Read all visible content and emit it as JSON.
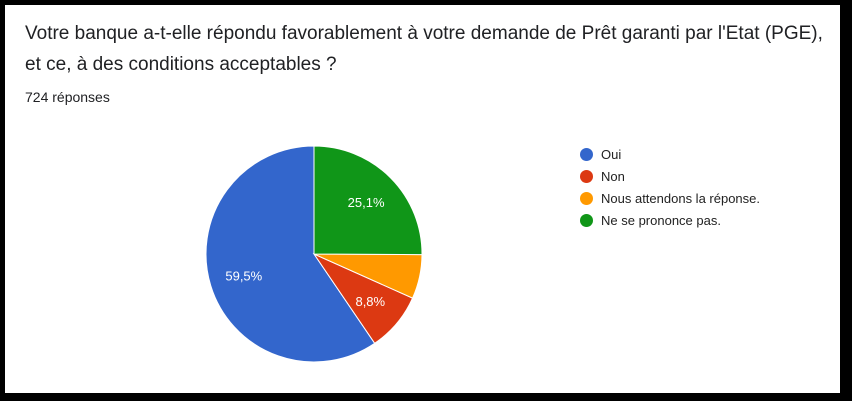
{
  "question": {
    "title": "Votre banque a-t-elle répondu favorablement à votre demande de Prêt garanti par l'Etat (PGE), et ce, à des conditions acceptables ?",
    "response_count": "724 réponses"
  },
  "chart_data": {
    "type": "pie",
    "categories": [
      "Oui",
      "Non",
      "Nous attendons la réponse.",
      "Ne se prononce pas."
    ],
    "values": [
      59.5,
      8.8,
      6.6,
      25.1
    ],
    "data_labels": [
      "59,5%",
      "8,8%",
      "",
      "25,1%"
    ],
    "colors": [
      "#3366cc",
      "#dc3912",
      "#ff9900",
      "#109618"
    ],
    "legend_position": "right",
    "start": "top",
    "direction": "counterclockwise"
  }
}
